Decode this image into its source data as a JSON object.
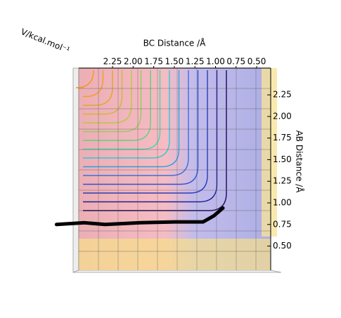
{
  "chart_data": {
    "type": "surface-top",
    "zlabel": "V/kcal.mol⁻¹",
    "xlabel": "BC Distance /Å",
    "ylabel": "AB Distance /Å",
    "xlim": [
      2.66,
      0.33
    ],
    "xticks": [
      2.25,
      {
        "value": 2,
        "label": "2.00"
      },
      1.75,
      {
        "value": 1.5,
        "label": "1.50"
      },
      1.25,
      {
        "value": 1,
        "label": "1.00"
      },
      0.75,
      {
        "value": 0.5,
        "label": "0.50"
      }
    ],
    "ylim": [
      0.22,
      2.56
    ],
    "yticks": [
      {
        "value": 0.5,
        "label": "0.50"
      },
      0.75,
      {
        "value": 1,
        "label": "1.00"
      },
      1.25,
      {
        "value": 1.5,
        "label": "1.50"
      },
      1.75,
      {
        "value": 2,
        "label": "2.00"
      },
      2.25
    ],
    "series": [
      {
        "color": "#000000",
        "x": [
          2.93,
          2.59,
          2.34,
          1.91,
          1.49,
          1.15,
          1.02,
          0.91
        ],
        "values": [
          0.75,
          0.77,
          0.75,
          0.77,
          0.78,
          0.78,
          0.85,
          0.94
        ]
      }
    ]
  }
}
